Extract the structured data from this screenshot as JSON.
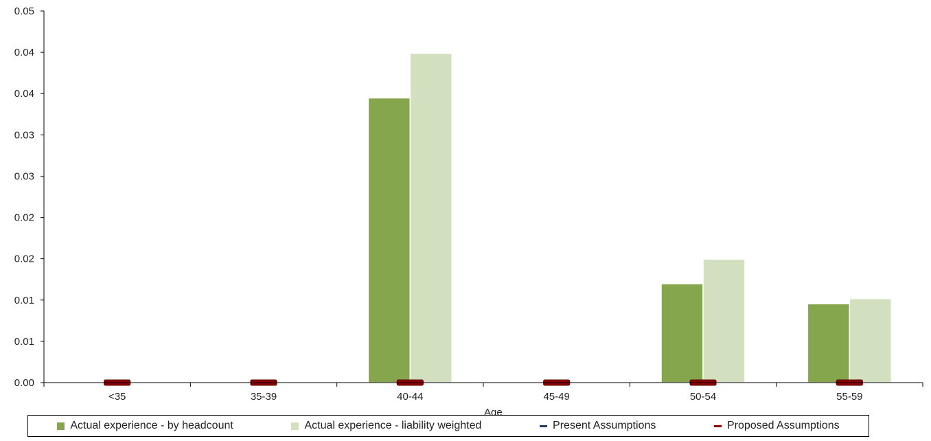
{
  "chart_data": {
    "type": "bar",
    "categories": [
      "<35",
      "35-39",
      "40-44",
      "45-49",
      "50-54",
      "55-59"
    ],
    "series": [
      {
        "name": "Actual experience - by headcount",
        "kind": "bar",
        "color": "#86a64e",
        "values": [
          0,
          0,
          0.0383,
          0,
          0.0133,
          0.0106
        ]
      },
      {
        "name": "Actual experience - liability weighted",
        "kind": "bar",
        "color": "#d3e0bf",
        "values": [
          0,
          0,
          0.0443,
          0,
          0.0166,
          0.0113
        ]
      },
      {
        "name": "Present Assumptions",
        "kind": "marker",
        "color": "#1f3864",
        "values": [
          0,
          0,
          0,
          0,
          0,
          0
        ]
      },
      {
        "name": "Proposed Assumptions",
        "kind": "marker",
        "color": "#8b0000",
        "values": [
          0,
          0,
          0,
          0,
          0,
          0
        ]
      }
    ],
    "y_tick_labels": [
      "0.00",
      "0.01",
      "0.01",
      "0.02",
      "0.02",
      "0.03",
      "0.03",
      "0.04",
      "0.04",
      "0.05"
    ],
    "ylim": [
      0,
      0.05
    ],
    "xlabel": "Age",
    "ylabel": "",
    "title": "",
    "grid": false,
    "legend_position": "bottom"
  }
}
